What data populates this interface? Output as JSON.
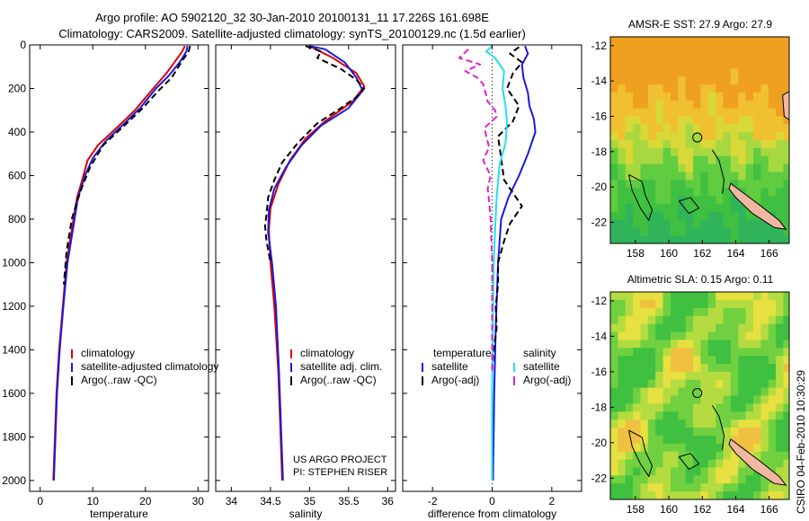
{
  "title": {
    "line1": "Argo profile: AO 5902120_32 30-Jan-2010 20100131_11 17.226S 161.698E",
    "line2": "Climatology: CARS2009. Satellite-adjusted climatology: synTS_20100129.nc (1.5d earlier)"
  },
  "side_label": "CSIRO 04-Feb-2010 10:30:29",
  "credits": [
    "US ARGO PROJECT",
    "PI: STEPHEN RISER"
  ],
  "colors": {
    "climatology": "#e00000",
    "satellite": "#1a1adc",
    "argo": "#000000",
    "sat_diff": "#22e0ee",
    "argo_adj": "#e020d0"
  },
  "chart_data": [
    {
      "type": "line",
      "xlabel": "temperature",
      "ylim": [
        2050,
        0
      ],
      "yticks": [
        0,
        200,
        400,
        600,
        800,
        1000,
        1200,
        1400,
        1600,
        1800,
        2000
      ],
      "xlim": [
        -2,
        32
      ],
      "xticks": [
        0,
        10,
        20,
        30
      ],
      "legend_items": [
        "climatology",
        "satellite-adjusted climatology",
        "Argo(..raw -QC)"
      ],
      "series": [
        {
          "name": "climatology",
          "color": "#e00000",
          "dash": "",
          "points": [
            [
              27.5,
              5
            ],
            [
              27,
              30
            ],
            [
              25.5,
              80
            ],
            [
              24,
              130
            ],
            [
              21.5,
              200
            ],
            [
              18,
              300
            ],
            [
              15,
              370
            ],
            [
              11,
              460
            ],
            [
              9,
              530
            ],
            [
              8,
              620
            ],
            [
              7,
              700
            ],
            [
              6,
              850
            ],
            [
              5,
              1000
            ],
            [
              4.3,
              1200
            ],
            [
              3.6,
              1400
            ],
            [
              3.1,
              1600
            ],
            [
              2.8,
              1800
            ],
            [
              2.5,
              2000
            ]
          ]
        },
        {
          "name": "satellite-adjusted climatology",
          "color": "#1a1adc",
          "dash": "",
          "points": [
            [
              28,
              5
            ],
            [
              27.8,
              30
            ],
            [
              26.5,
              80
            ],
            [
              24.5,
              140
            ],
            [
              22,
              200
            ],
            [
              19,
              290
            ],
            [
              16,
              360
            ],
            [
              12.5,
              440
            ],
            [
              10,
              520
            ],
            [
              8.5,
              600
            ],
            [
              7.2,
              700
            ],
            [
              6.2,
              850
            ],
            [
              5.2,
              1000
            ],
            [
              4.4,
              1200
            ],
            [
              3.7,
              1400
            ],
            [
              3.2,
              1600
            ],
            [
              2.9,
              1800
            ],
            [
              2.6,
              2000
            ]
          ]
        },
        {
          "name": "Argo(..raw -QC)",
          "color": "#000000",
          "dash": "7,4",
          "points": [
            [
              28.5,
              5
            ],
            [
              28.2,
              30
            ],
            [
              26.8,
              80
            ],
            [
              25,
              150
            ],
            [
              22.5,
              210
            ],
            [
              19.5,
              290
            ],
            [
              16,
              370
            ],
            [
              12,
              460
            ],
            [
              9.5,
              560
            ],
            [
              8,
              650
            ],
            [
              7,
              720
            ],
            [
              6,
              800
            ],
            [
              5,
              950
            ],
            [
              4.5,
              1100
            ]
          ]
        }
      ]
    },
    {
      "type": "line",
      "xlabel": "salinity",
      "ylim": [
        2050,
        0
      ],
      "xlim": [
        33.8,
        36.1
      ],
      "xticks": [
        34,
        34.5,
        35,
        35.5,
        36
      ],
      "legend_items": [
        "climatology",
        "satellite adj. clim.",
        "Argo(..raw -QC)"
      ],
      "series": [
        {
          "name": "climatology",
          "color": "#e00000",
          "dash": "",
          "points": [
            [
              35,
              5
            ],
            [
              35.3,
              60
            ],
            [
              35.6,
              130
            ],
            [
              35.7,
              190
            ],
            [
              35.55,
              260
            ],
            [
              35.2,
              350
            ],
            [
              34.95,
              430
            ],
            [
              34.75,
              530
            ],
            [
              34.6,
              640
            ],
            [
              34.5,
              750
            ],
            [
              34.48,
              850
            ],
            [
              34.5,
              1000
            ],
            [
              34.55,
              1200
            ],
            [
              34.6,
              1500
            ],
            [
              34.63,
              1800
            ],
            [
              34.65,
              2000
            ]
          ]
        },
        {
          "name": "satellite adj. clim.",
          "color": "#1a1adc",
          "dash": "",
          "points": [
            [
              35,
              5
            ],
            [
              35.2,
              20
            ],
            [
              35.45,
              80
            ],
            [
              35.6,
              150
            ],
            [
              35.68,
              210
            ],
            [
              35.5,
              290
            ],
            [
              35.15,
              370
            ],
            [
              34.9,
              460
            ],
            [
              34.7,
              560
            ],
            [
              34.55,
              660
            ],
            [
              34.48,
              760
            ],
            [
              34.47,
              860
            ],
            [
              34.52,
              1000
            ],
            [
              34.57,
              1200
            ],
            [
              34.61,
              1500
            ],
            [
              34.64,
              1800
            ],
            [
              34.66,
              2000
            ]
          ]
        },
        {
          "name": "Argo(..raw -QC)",
          "color": "#000000",
          "dash": "7,4",
          "points": [
            [
              34.95,
              5
            ],
            [
              35.15,
              30
            ],
            [
              35.1,
              60
            ],
            [
              35.4,
              110
            ],
            [
              35.6,
              160
            ],
            [
              35.7,
              200
            ],
            [
              35.6,
              240
            ],
            [
              35.4,
              290
            ],
            [
              35.1,
              360
            ],
            [
              34.85,
              450
            ],
            [
              34.65,
              540
            ],
            [
              34.55,
              620
            ],
            [
              34.47,
              700
            ],
            [
              34.45,
              780
            ],
            [
              34.43,
              830
            ],
            [
              34.45,
              900
            ],
            [
              34.5,
              1000
            ]
          ]
        }
      ]
    },
    {
      "type": "line",
      "xlabel": "difference from climatology",
      "ylim": [
        2050,
        0
      ],
      "xlim": [
        -3,
        3
      ],
      "xticks": [
        -2,
        0,
        2
      ],
      "legend_groups": [
        {
          "heading": "temperature",
          "items": [
            "satellite",
            "Argo(-adj)"
          ]
        },
        {
          "heading": "salinity",
          "items": [
            "satellite",
            "Argo(-adj)"
          ]
        }
      ],
      "series": [
        {
          "name": "satellite",
          "color": "#1a1adc",
          "dash": "",
          "points": [
            [
              1.1,
              5
            ],
            [
              1.2,
              40
            ],
            [
              1,
              90
            ],
            [
              1.05,
              150
            ],
            [
              1.2,
              220
            ],
            [
              1.25,
              280
            ],
            [
              1.4,
              340
            ],
            [
              1.45,
              400
            ],
            [
              1.2,
              500
            ],
            [
              0.9,
              600
            ],
            [
              0.55,
              700
            ],
            [
              0.3,
              800
            ],
            [
              0.2,
              1000
            ],
            [
              0.12,
              1300
            ],
            [
              0.07,
              1600
            ],
            [
              0.03,
              2000
            ]
          ]
        },
        {
          "name": "Argo(-adj)",
          "color": "#000000",
          "dash": "7,4",
          "points": [
            [
              0.9,
              10
            ],
            [
              0.6,
              40
            ],
            [
              1,
              80
            ],
            [
              0.7,
              130
            ],
            [
              0.5,
              200
            ],
            [
              0.9,
              280
            ],
            [
              0.7,
              350
            ],
            [
              0.2,
              420
            ],
            [
              0.3,
              520
            ],
            [
              0.4,
              620
            ],
            [
              0.7,
              680
            ],
            [
              1,
              740
            ],
            [
              0.6,
              820
            ],
            [
              0.4,
              900
            ],
            [
              0.2,
              1000
            ],
            [
              0.2,
              1100
            ],
            [
              0.12,
              1200
            ],
            [
              0.15,
              1300
            ],
            [
              0.05,
              1400
            ],
            [
              0,
              1500
            ]
          ]
        },
        {
          "name": "satellite",
          "color": "#22e0ee",
          "dash": "",
          "points": [
            [
              0,
              5
            ],
            [
              -0.2,
              30
            ],
            [
              0.1,
              60
            ],
            [
              0.4,
              120
            ],
            [
              0.35,
              200
            ],
            [
              0.45,
              280
            ],
            [
              0.5,
              360
            ],
            [
              0.45,
              450
            ],
            [
              0.25,
              550
            ],
            [
              0.15,
              700
            ],
            [
              0.1,
              850
            ],
            [
              0.05,
              1000
            ],
            [
              0.02,
              1300
            ],
            [
              0,
              1600
            ],
            [
              0,
              2000
            ]
          ]
        },
        {
          "name": "Argo(-adj)",
          "color": "#e020d0",
          "dash": "7,4",
          "points": [
            [
              -0.8,
              20
            ],
            [
              -1.1,
              60
            ],
            [
              -0.4,
              90
            ],
            [
              -0.9,
              120
            ],
            [
              -0.5,
              150
            ],
            [
              -0.3,
              180
            ],
            [
              -0.2,
              230
            ],
            [
              -0.15,
              260
            ],
            [
              0.1,
              300
            ],
            [
              0.15,
              330
            ],
            [
              -0.25,
              380
            ],
            [
              -0.2,
              420
            ],
            [
              -0.1,
              470
            ],
            [
              -0.3,
              530
            ],
            [
              -0.05,
              600
            ],
            [
              -0.15,
              660
            ],
            [
              -0.1,
              720
            ],
            [
              -0.05,
              800
            ],
            [
              0,
              1000
            ],
            [
              0,
              1500
            ]
          ]
        }
      ]
    },
    {
      "type": "heatmap",
      "title": "AMSR-E SST: 27.9 Argo: 27.9",
      "xticks": [
        158,
        160,
        162,
        164,
        166
      ],
      "yticks": [
        -12,
        -14,
        -16,
        -18,
        -20,
        -22
      ],
      "xlim": [
        156.5,
        167.2
      ],
      "ylim": [
        -23.2,
        -11.5
      ],
      "marker": [
        161.7,
        -17.2
      ]
    },
    {
      "type": "heatmap",
      "title": "Altimetric SLA: 0.15 Argo: 0.11",
      "xticks": [
        158,
        160,
        162,
        164,
        166
      ],
      "yticks": [
        -12,
        -14,
        -16,
        -18,
        -20,
        -22
      ],
      "xlim": [
        156.5,
        167.2
      ],
      "ylim": [
        -23.2,
        -11.5
      ],
      "marker": [
        161.7,
        -17.2
      ]
    }
  ]
}
